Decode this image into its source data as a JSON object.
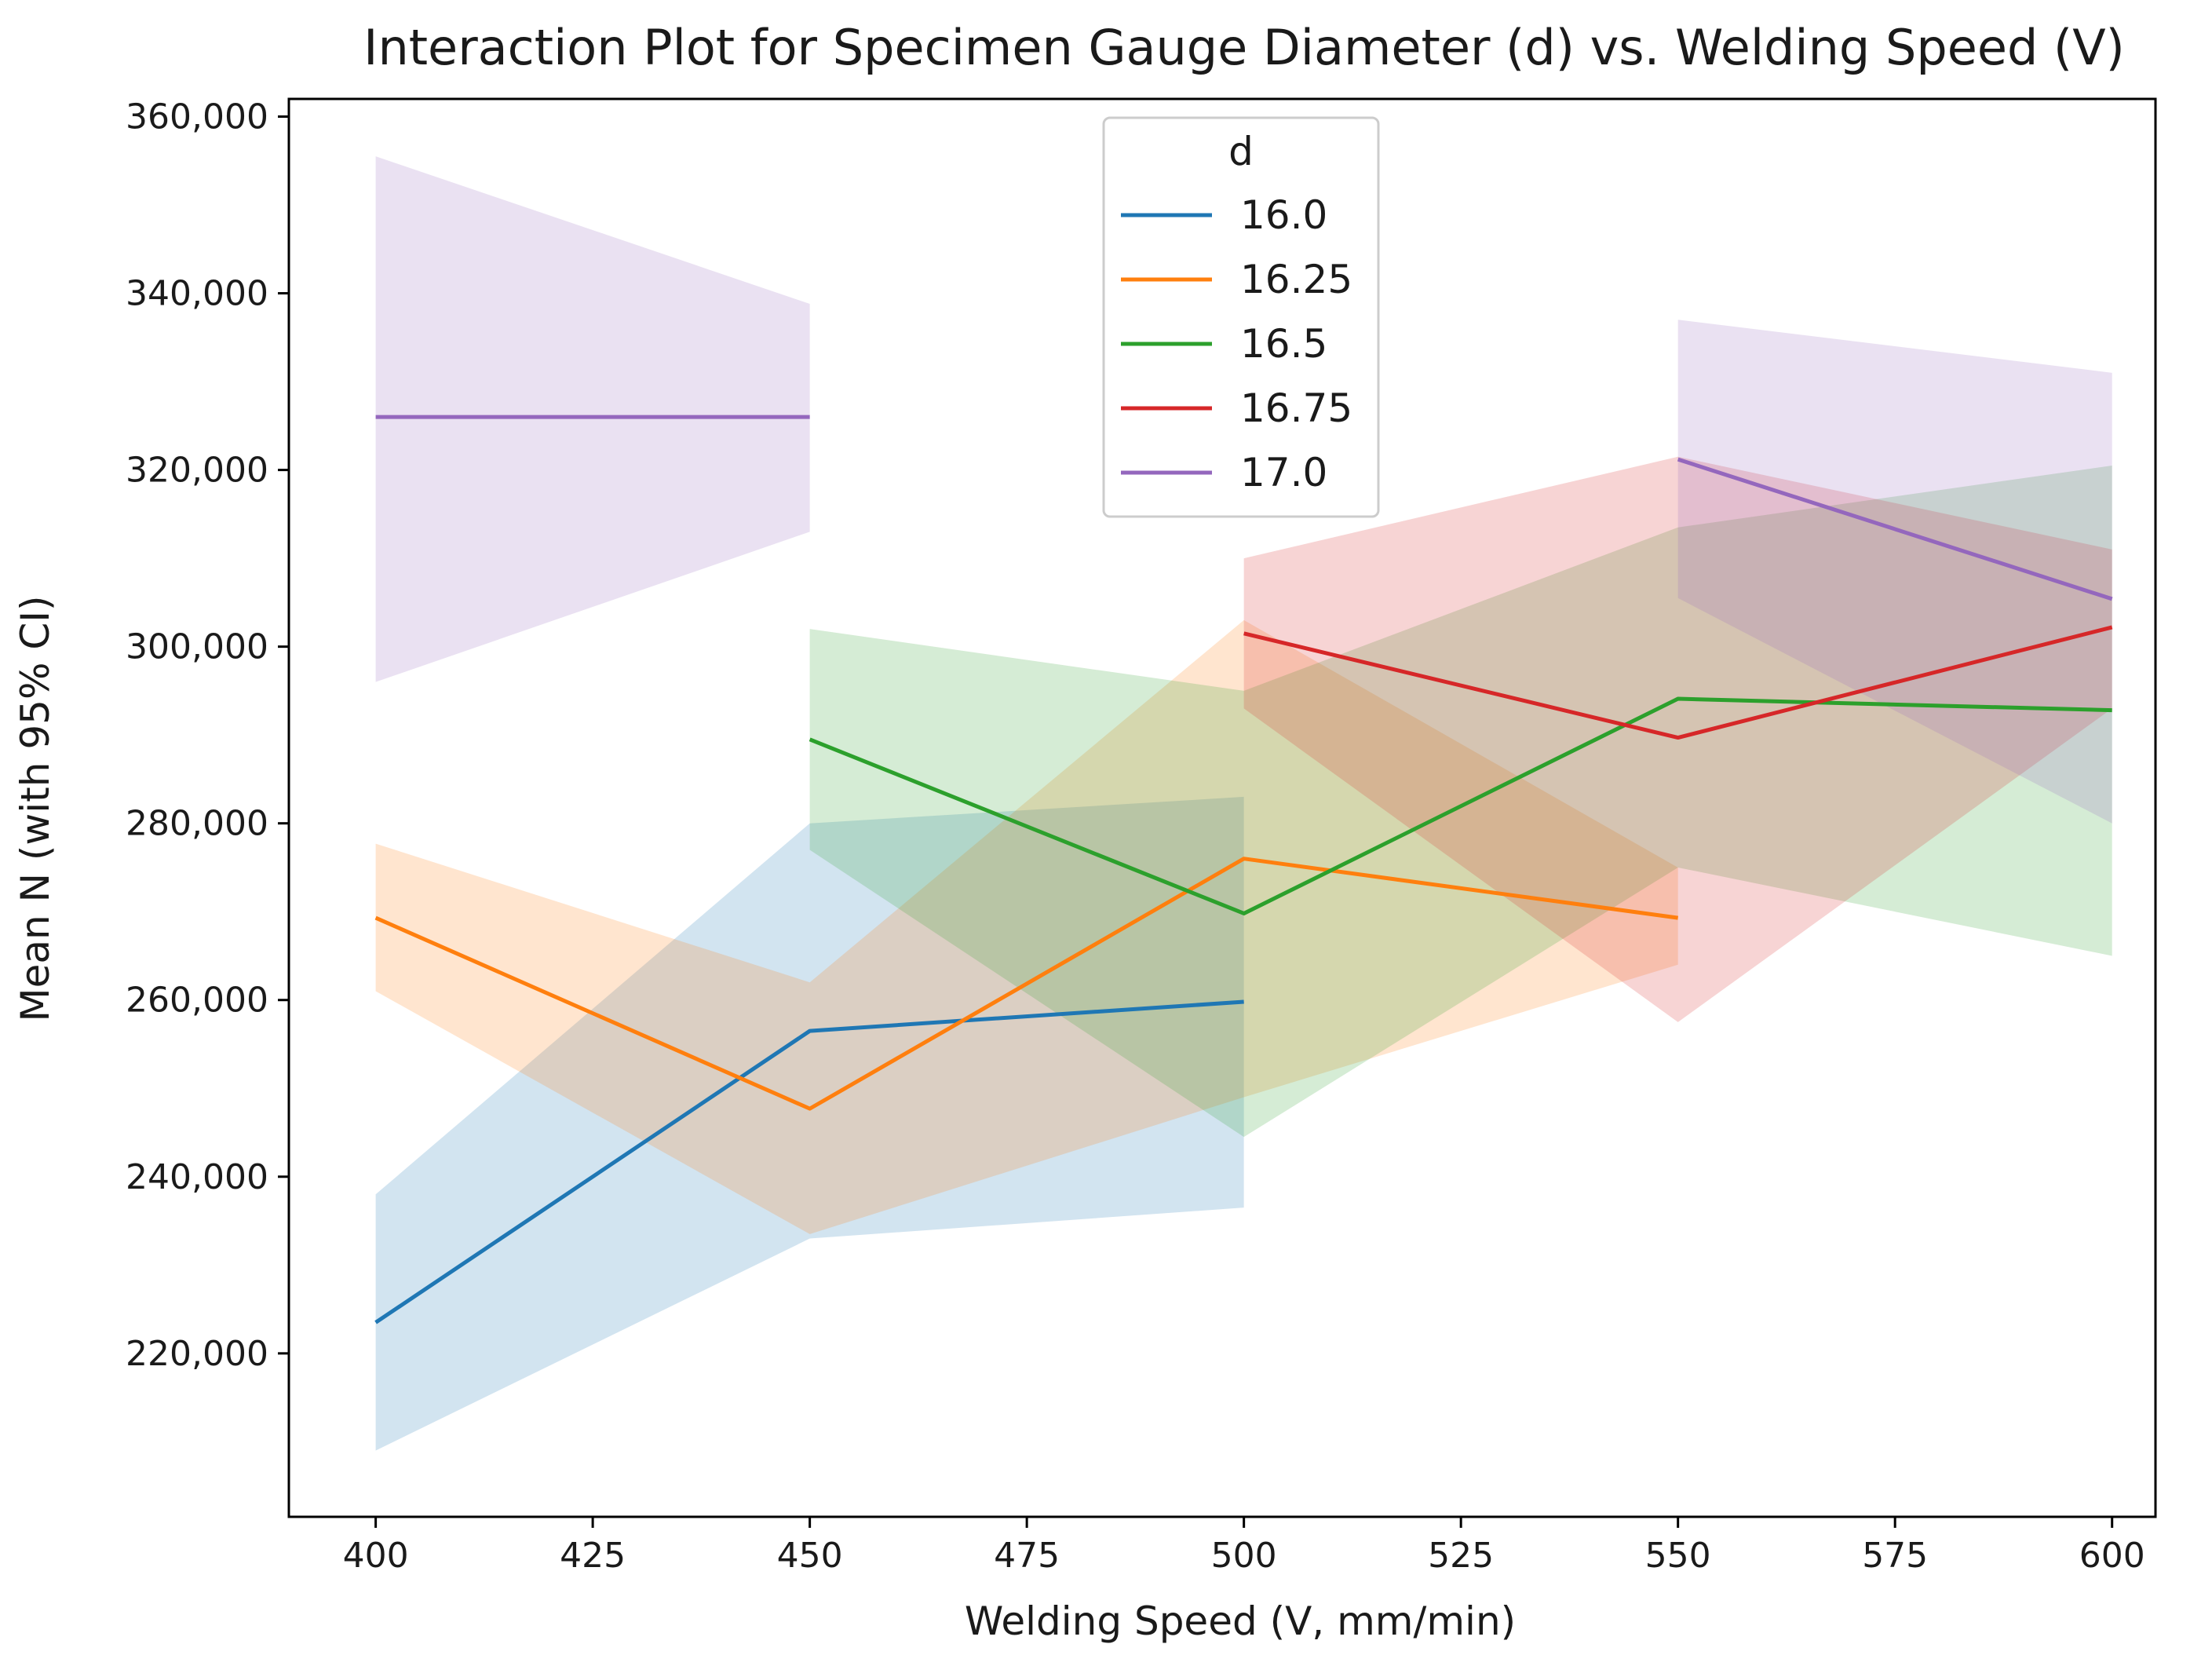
{
  "chart_data": {
    "type": "line",
    "title": "Interaction Plot for Specimen Gauge Diameter (d) vs. Welding Speed (V)",
    "xlabel": "Welding Speed (V, mm/min)",
    "ylabel": "Mean N (with 95% CI)",
    "xlim": [
      390,
      605
    ],
    "ylim": [
      201500,
      362000
    ],
    "xticks": [
      400,
      425,
      450,
      475,
      500,
      525,
      550,
      575,
      600
    ],
    "xtick_labels": [
      "400",
      "425",
      "450",
      "475",
      "500",
      "525",
      "550",
      "575",
      "600"
    ],
    "yticks": [
      220000,
      240000,
      260000,
      280000,
      300000,
      320000,
      340000,
      360000
    ],
    "ytick_labels": [
      "220,000",
      "240,000",
      "260,000",
      "280,000",
      "300,000",
      "320,000",
      "340,000",
      "360,000"
    ],
    "grid": false,
    "legend": {
      "title": "d",
      "placement": "upper-center"
    },
    "series": [
      {
        "name": "16.0",
        "color": "#1f77b4",
        "x": [
          400,
          450,
          500
        ],
        "y": [
          223500,
          256500,
          259800
        ],
        "ci_low": [
          209000,
          233000,
          236500
        ],
        "ci_high": [
          238000,
          280000,
          283000
        ]
      },
      {
        "name": "16.25",
        "color": "#ff7f0e",
        "x": [
          400,
          450,
          500,
          550
        ],
        "y": [
          269300,
          247700,
          276000,
          269300
        ],
        "ci_low": [
          261000,
          233500,
          249000,
          264000
        ],
        "ci_high": [
          277700,
          262000,
          303000,
          275000
        ]
      },
      {
        "name": "16.5",
        "color": "#2ca02c",
        "x": [
          450,
          500,
          550,
          600
        ],
        "y": [
          289500,
          269800,
          294100,
          292800
        ],
        "ci_low": [
          277000,
          244500,
          275000,
          265000
        ],
        "ci_high": [
          302000,
          295000,
          313500,
          320500
        ]
      },
      {
        "name": "16.75",
        "color": "#d62728",
        "x": [
          500,
          550,
          600
        ],
        "y": [
          301500,
          289700,
          302200
        ],
        "ci_low": [
          293000,
          257500,
          293000
        ],
        "ci_high": [
          310000,
          321500,
          311000
        ]
      },
      {
        "name": "17.0",
        "color": "#9467bd",
        "x": [
          400,
          450,
          550,
          600
        ],
        "y": [
          326000,
          326000,
          321200,
          305400
        ],
        "segments": [
          [
            0,
            1
          ],
          [
            2,
            3
          ]
        ],
        "ci_low": [
          296000,
          313000,
          305500,
          280000
        ],
        "ci_high": [
          355500,
          338800,
          337000,
          331000
        ]
      }
    ]
  }
}
